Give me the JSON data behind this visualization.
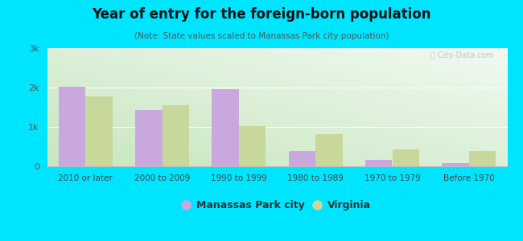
{
  "title": "Year of entry for the foreign-born population",
  "subtitle": "(Note: State values scaled to Manassas Park city population)",
  "categories": [
    "2010 or later",
    "2000 to 2009",
    "1990 to 1999",
    "1980 to 1989",
    "1970 to 1979",
    "Before 1970"
  ],
  "manassas": [
    2020,
    1430,
    1960,
    380,
    160,
    90
  ],
  "virginia": [
    1780,
    1560,
    1020,
    820,
    430,
    390
  ],
  "manassas_color": "#c9a8e0",
  "virginia_color": "#c8d89a",
  "background_outer": "#00e5ff",
  "background_inner_bottom_left": "#c8e6c0",
  "background_inner_top_right": "#f0faf0",
  "ylim": [
    0,
    3000
  ],
  "yticks": [
    0,
    1000,
    2000,
    3000
  ],
  "ytick_labels": [
    "0",
    "1k",
    "2k",
    "3k"
  ],
  "legend_manassas": "Manassas Park city",
  "legend_virginia": "Virginia",
  "bar_width": 0.35
}
